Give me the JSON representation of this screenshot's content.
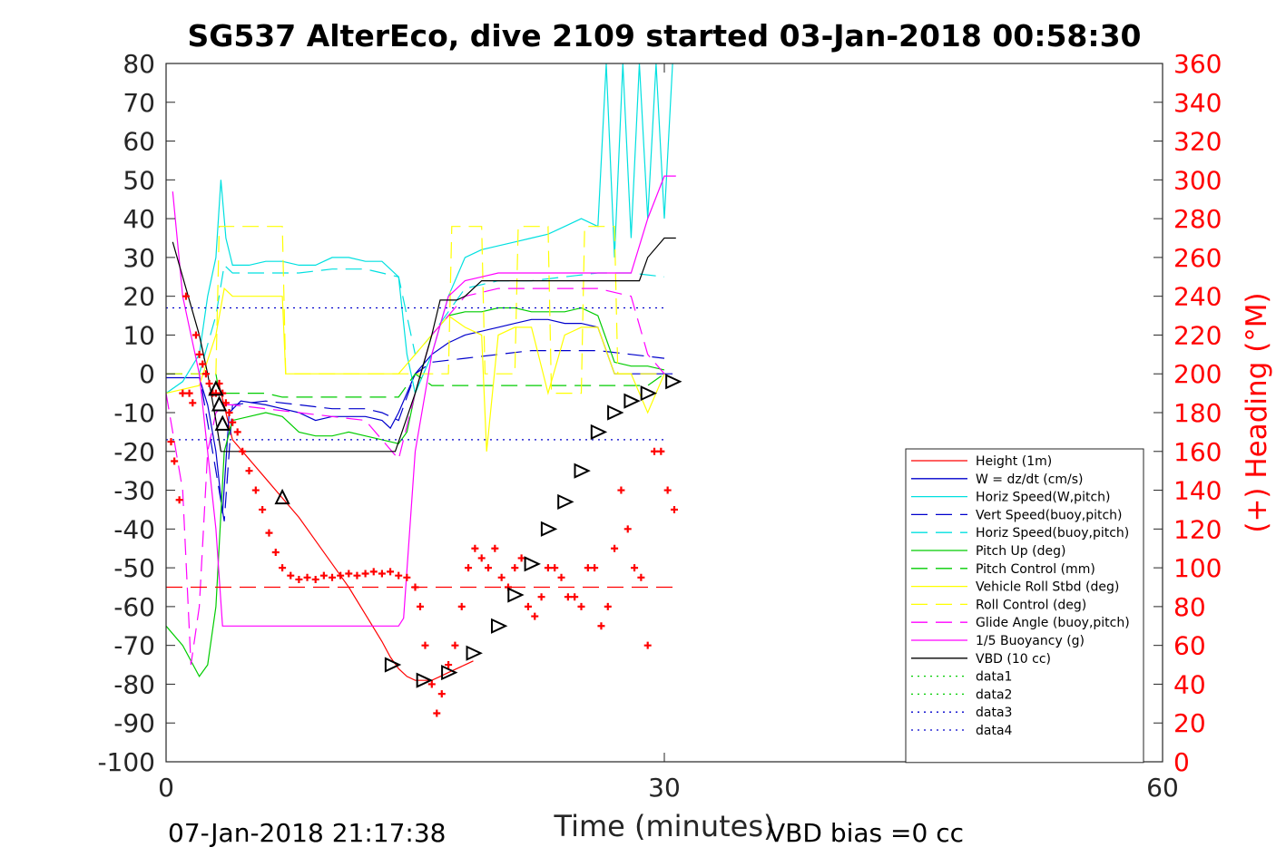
{
  "chart_data": {
    "type": "line",
    "title": "SG537 AlterEco, dive 2109 started 03-Jan-2018 00:58:30",
    "xlabel": "Time (minutes)",
    "ylabel": "",
    "ylabel_right": "(+) Heading (°M)",
    "xlim": [
      0,
      60
    ],
    "ylim": [
      -100,
      80
    ],
    "ylim_right": [
      0,
      360
    ],
    "xticks": [
      "0",
      "30",
      "60"
    ],
    "yticks": [
      "80",
      "70",
      "60",
      "50",
      "40",
      "30",
      "20",
      "10",
      "0",
      "-10",
      "-20",
      "-30",
      "-40",
      "-50",
      "-60",
      "-70",
      "-80",
      "-90",
      "-100"
    ],
    "yticks_right": [
      "360",
      "340",
      "320",
      "300",
      "280",
      "260",
      "240",
      "220",
      "200",
      "180",
      "160",
      "140",
      "120",
      "100",
      "80",
      "60",
      "40",
      "20",
      "0"
    ],
    "grid": false,
    "legend_position": "bottom-right",
    "footer_left": "07-Jan-2018 21:17:38",
    "footer_right": "VBD bias =0 cc",
    "series": [
      {
        "name": "Height (1m)",
        "color": "#ff0000",
        "style": "solid",
        "x": [
          3.2,
          4,
          5,
          6,
          7,
          8,
          9,
          10,
          11,
          12,
          13,
          13.5,
          14,
          14.5,
          15,
          15.5,
          16,
          16.5,
          17,
          17.5,
          18,
          18.5
        ],
        "y": [
          -3,
          -17,
          -22,
          -27,
          -32,
          -37,
          -43,
          -49,
          -55,
          -62,
          -69,
          -73,
          -76,
          -78,
          -79,
          -79,
          -79,
          -78,
          -77,
          -76,
          -75,
          -74
        ]
      },
      {
        "name": "W = dz/dt (cm/s)",
        "color": "#0000cc",
        "style": "solid",
        "x": [
          0,
          2,
          2.5,
          3,
          3.4,
          3.8,
          4.5,
          6,
          7,
          8,
          9,
          10,
          11,
          12,
          13,
          13.5,
          14,
          15,
          16,
          17,
          18,
          19,
          20,
          21,
          22,
          23,
          24,
          25,
          26,
          27,
          28,
          29,
          30,
          30.5
        ],
        "y": [
          -1,
          -1,
          -8,
          -20,
          -36,
          -10,
          -7,
          -8,
          -9,
          -10,
          -12,
          -11,
          -11,
          -11,
          -12,
          -14,
          -10,
          0,
          5,
          8,
          10,
          11,
          12,
          13,
          14,
          14,
          13,
          13,
          12,
          0,
          0,
          0,
          0,
          0
        ]
      },
      {
        "name": "Horiz Speed(W,pitch)",
        "color": "#00e0e0",
        "style": "solid",
        "x": [
          0,
          1,
          2,
          2.5,
          3,
          3.3,
          3.6,
          4,
          5,
          6,
          7,
          8,
          9,
          10,
          11,
          12,
          13,
          14,
          14.5,
          15,
          16,
          17,
          18,
          19,
          20,
          21,
          22,
          23,
          24,
          25,
          26,
          26.5,
          27,
          27.5,
          28,
          28.5,
          29,
          29.5,
          30,
          30.5
        ],
        "y": [
          -5,
          -2,
          5,
          20,
          30,
          50,
          35,
          28,
          28,
          29,
          29,
          28,
          28,
          30,
          30,
          29,
          29,
          25,
          5,
          -5,
          5,
          20,
          30,
          32,
          33,
          34,
          35,
          36,
          38,
          40,
          38,
          80,
          30,
          80,
          35,
          80,
          40,
          80,
          40,
          80
        ]
      },
      {
        "name": "Vert Speed(buoy,pitch)",
        "color": "#0000cc",
        "style": "dash",
        "x": [
          0,
          2,
          3,
          3.5,
          4,
          6,
          8,
          10,
          12,
          13,
          14,
          15,
          16,
          18,
          20,
          22,
          24,
          26,
          28,
          30
        ],
        "y": [
          0,
          0,
          -25,
          -38,
          -8,
          -7,
          -8,
          -9,
          -9,
          -10,
          -12,
          0,
          3,
          4,
          5,
          6,
          6,
          6,
          5,
          4
        ]
      },
      {
        "name": "Horiz Speed(buoy,pitch)",
        "color": "#00e0e0",
        "style": "dash",
        "x": [
          0,
          2,
          3,
          3.5,
          4,
          6,
          8,
          10,
          12,
          13,
          14,
          15,
          16,
          18,
          20,
          22,
          24,
          26,
          28,
          30
        ],
        "y": [
          0,
          0,
          15,
          28,
          26,
          26,
          26,
          27,
          27,
          26,
          25,
          5,
          10,
          22,
          24,
          24,
          25,
          26,
          26,
          25
        ]
      },
      {
        "name": "Pitch Up (deg)",
        "color": "#00cc00",
        "style": "solid",
        "x": [
          0,
          1,
          2,
          2.5,
          3,
          3.5,
          4,
          5,
          6,
          7,
          8,
          9,
          10,
          11,
          12,
          13,
          14,
          14.5,
          15,
          16,
          17,
          18,
          19,
          20,
          21,
          22,
          23,
          24,
          25,
          26,
          27,
          28,
          29,
          30
        ],
        "y": [
          -65,
          -70,
          -78,
          -75,
          -60,
          -20,
          -12,
          -11,
          -10,
          -11,
          -15,
          -16,
          -16,
          -15,
          -16,
          -17,
          -18,
          -15,
          -5,
          10,
          15,
          16,
          16,
          17,
          17,
          16,
          16,
          16,
          17,
          15,
          3,
          2,
          2,
          1
        ]
      },
      {
        "name": "Pitch Control (mm)",
        "color": "#00cc00",
        "style": "dash",
        "x": [
          0,
          3,
          3.2,
          6,
          7,
          14,
          15,
          16,
          29,
          30
        ],
        "y": [
          0,
          0,
          -5,
          -5,
          -6,
          -6,
          0,
          -3,
          -3,
          0
        ]
      },
      {
        "name": "Vehicle Roll Stbd (deg)",
        "color": "#ffff00",
        "style": "solid",
        "x": [
          0,
          2,
          3,
          3.5,
          4,
          5,
          6,
          7,
          7.2,
          8,
          10,
          12,
          14,
          15,
          16,
          17,
          18,
          19,
          19.3,
          20,
          21,
          22,
          23,
          24,
          25,
          26,
          27,
          28,
          29,
          30
        ],
        "y": [
          -5,
          -3,
          10,
          22,
          20,
          20,
          20,
          20,
          0,
          0,
          0,
          0,
          0,
          5,
          10,
          15,
          12,
          10,
          -20,
          10,
          12,
          12,
          -5,
          10,
          12,
          12,
          0,
          0,
          -10,
          0
        ]
      },
      {
        "name": "Roll Control (deg)",
        "color": "#ffff00",
        "style": "dash",
        "x": [
          0,
          3,
          3.2,
          7,
          7.2,
          17,
          17.2,
          19,
          19.2,
          21,
          21.2,
          23,
          23.2,
          25,
          25.2,
          27,
          27.2,
          30
        ],
        "y": [
          0,
          0,
          38,
          38,
          0,
          0,
          38,
          38,
          0,
          0,
          38,
          38,
          -5,
          -5,
          38,
          38,
          0,
          0
        ]
      },
      {
        "name": "Glide Angle (buoy,pitch)",
        "color": "#ff00ff",
        "style": "dash",
        "x": [
          0,
          1,
          1.5,
          2,
          2.5,
          3,
          3.5,
          4,
          6,
          8,
          10,
          12,
          14,
          15,
          16,
          18,
          20,
          22,
          24,
          26,
          28,
          29,
          30
        ],
        "y": [
          -5,
          -30,
          -75,
          -60,
          -20,
          -10,
          -8,
          -8,
          -9,
          -10,
          -11,
          -12,
          -22,
          -5,
          10,
          20,
          22,
          22,
          22,
          22,
          20,
          5,
          0
        ]
      },
      {
        "name": "1/5 Buoyancy (g)",
        "color": "#ff00ff",
        "style": "solid",
        "x": [
          0.4,
          1,
          2,
          3,
          3.4,
          14,
          14.3,
          15,
          16,
          17,
          18,
          19,
          20,
          26,
          28,
          29,
          30,
          30.7
        ],
        "y": [
          47,
          20,
          0,
          -40,
          -65,
          -65,
          -63,
          -20,
          5,
          20,
          24,
          25,
          26,
          26,
          26,
          40,
          51,
          51
        ]
      },
      {
        "name": "VBD (10 cc)",
        "color": "#000000",
        "style": "solid",
        "x": [
          0.4,
          1,
          2,
          2.5,
          3,
          3.3,
          13.8,
          14.2,
          15,
          16,
          16.5,
          17.5,
          18,
          19,
          28.5,
          29,
          30,
          30.7
        ],
        "y": [
          34,
          25,
          10,
          0,
          -12,
          -20,
          -20,
          -15,
          -5,
          10,
          19,
          19,
          20,
          24,
          24,
          30,
          35,
          35
        ]
      },
      {
        "name": "data1",
        "color": "#00cc00",
        "style": "dot",
        "x": [],
        "y": []
      },
      {
        "name": "data2",
        "color": "#00cc00",
        "style": "dot",
        "x": [],
        "y": []
      },
      {
        "name": "data3",
        "color": "#0000cc",
        "style": "dot",
        "x": [
          0,
          30
        ],
        "y": [
          17,
          17
        ]
      },
      {
        "name": "data4",
        "color": "#0000cc",
        "style": "dot",
        "x": [
          0,
          30
        ],
        "y": [
          -17,
          -17
        ]
      }
    ],
    "reference_lines": [
      {
        "color": "#ff0000",
        "style": "dash",
        "x": [
          0,
          30.7
        ],
        "y": [
          -55,
          -55
        ]
      }
    ],
    "heading_points": {
      "color": "#ff0000",
      "x": [
        0.3,
        0.5,
        0.8,
        1,
        1.2,
        1.4,
        1.6,
        1.8,
        2,
        2.2,
        2.4,
        2.6,
        2.8,
        3,
        3.2,
        3.4,
        3.6,
        3.8,
        4,
        4.3,
        4.6,
        5,
        5.4,
        5.8,
        6.2,
        6.6,
        7,
        7.5,
        8,
        8.5,
        9,
        9.5,
        10,
        10.5,
        11,
        11.5,
        12,
        12.5,
        13,
        13.5,
        14,
        14.5,
        15,
        15.3,
        15.6,
        16,
        16.3,
        16.6,
        17,
        17.4,
        17.8,
        18.2,
        18.6,
        19,
        19.4,
        19.8,
        20.2,
        20.6,
        21,
        21.4,
        21.8,
        22.2,
        22.6,
        23,
        23.4,
        23.8,
        24.2,
        24.6,
        25,
        25.4,
        25.8,
        26.2,
        26.6,
        27,
        27.4,
        27.8,
        28.2,
        28.6,
        29,
        29.4,
        29.8,
        30.2,
        30.6
      ],
      "y": [
        165,
        155,
        135,
        190,
        240,
        190,
        185,
        220,
        210,
        205,
        200,
        195,
        190,
        190,
        195,
        190,
        185,
        180,
        175,
        170,
        160,
        150,
        140,
        130,
        118,
        108,
        100,
        96,
        94,
        95,
        94,
        96,
        95,
        96,
        97,
        96,
        97,
        98,
        97,
        98,
        96,
        95,
        90,
        80,
        60,
        40,
        25,
        35,
        50,
        60,
        80,
        100,
        110,
        105,
        100,
        110,
        95,
        90,
        100,
        105,
        80,
        75,
        85,
        100,
        100,
        95,
        85,
        85,
        80,
        100,
        100,
        70,
        80,
        110,
        140,
        120,
        100,
        95,
        60,
        160,
        160,
        140,
        130
      ]
    },
    "dive_markers": {
      "color": "#000000",
      "x": [
        3,
        3.2,
        3.4,
        7,
        13.6,
        15.5,
        17,
        18.5,
        20,
        21,
        22,
        23,
        24,
        25,
        26,
        27,
        28,
        29,
        30.5
      ],
      "y": [
        -4,
        -8,
        -13,
        -32,
        -75,
        -79,
        -77,
        -72,
        -65,
        -57,
        -49,
        -40,
        -33,
        -25,
        -15,
        -10,
        -7,
        -5,
        -2
      ]
    }
  }
}
